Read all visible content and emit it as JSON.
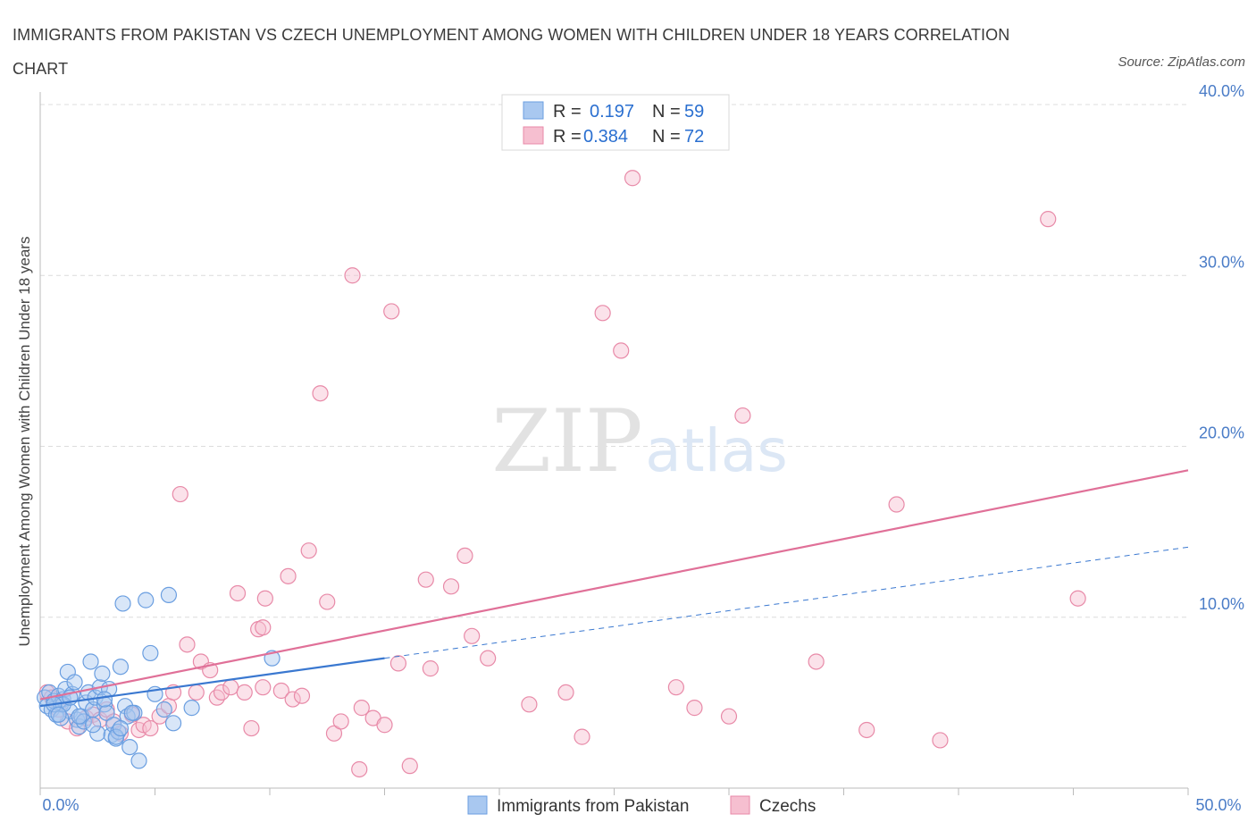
{
  "title": "IMMIGRANTS FROM PAKISTAN VS CZECH UNEMPLOYMENT AMONG WOMEN WITH CHILDREN UNDER 18 YEARS CORRELATION CHART",
  "source": "Source: ZipAtlas.com",
  "watermark": {
    "zip": "ZIP",
    "atlas": "atlas"
  },
  "colors": {
    "blue_fill": "#a9c8f0",
    "blue_stroke": "#6a9ee0",
    "blue_line": "#3a78d0",
    "pink_fill": "#f6bfd0",
    "pink_stroke": "#e88aa8",
    "pink_line": "#e07098",
    "grid": "#dcdcdc",
    "axis_text": "#4a7cc7"
  },
  "legend": {
    "rows": [
      {
        "r_label": "R =",
        "r_value": "0.197",
        "n_label": "N =",
        "n_value": "59"
      },
      {
        "r_label": "R =",
        "r_value": "0.384",
        "n_label": "N =",
        "n_value": "72"
      }
    ]
  },
  "chart_data": {
    "type": "scatter",
    "xlabel": "",
    "ylabel": "Unemployment Among Women with Children Under 18 years",
    "xlim": [
      0,
      50
    ],
    "ylim": [
      0,
      40
    ],
    "x_tick_labels": [
      "0.0%",
      "50.0%"
    ],
    "y_ticks": [
      10,
      20,
      30,
      40
    ],
    "y_tick_labels": [
      "10.0%",
      "20.0%",
      "30.0%",
      "40.0%"
    ],
    "grid": true,
    "series": [
      {
        "name": "Immigrants from Pakistan",
        "r": 0.197,
        "n": 59,
        "trend": {
          "x0": 0,
          "y0": 4.8,
          "x1": 15,
          "y1": 7.6,
          "dashed_to_x": 50,
          "dashed_to_y": 14.1
        },
        "points": [
          [
            0.2,
            5.3
          ],
          [
            0.3,
            4.8
          ],
          [
            0.4,
            5.6
          ],
          [
            0.5,
            4.6
          ],
          [
            0.6,
            5.1
          ],
          [
            0.7,
            4.3
          ],
          [
            0.8,
            5.4
          ],
          [
            0.9,
            4.9
          ],
          [
            1.0,
            5.2
          ],
          [
            1.1,
            5.8
          ],
          [
            1.2,
            6.8
          ],
          [
            1.3,
            4.5
          ],
          [
            1.4,
            5.5
          ],
          [
            1.5,
            6.2
          ],
          [
            1.6,
            4.0
          ],
          [
            1.7,
            3.6
          ],
          [
            1.8,
            4.2
          ],
          [
            1.9,
            3.9
          ],
          [
            2.0,
            5.0
          ],
          [
            2.1,
            5.6
          ],
          [
            2.2,
            7.4
          ],
          [
            2.3,
            4.6
          ],
          [
            2.4,
            5.3
          ],
          [
            2.5,
            3.2
          ],
          [
            2.6,
            5.9
          ],
          [
            2.7,
            6.7
          ],
          [
            2.8,
            4.9
          ],
          [
            2.9,
            4.4
          ],
          [
            3.0,
            5.8
          ],
          [
            3.1,
            3.1
          ],
          [
            3.2,
            3.7
          ],
          [
            3.3,
            2.9
          ],
          [
            3.4,
            3.3
          ],
          [
            3.5,
            7.1
          ],
          [
            3.6,
            10.8
          ],
          [
            3.7,
            4.8
          ],
          [
            3.8,
            4.2
          ],
          [
            3.9,
            2.4
          ],
          [
            4.1,
            4.4
          ],
          [
            4.3,
            1.6
          ],
          [
            4.6,
            11.0
          ],
          [
            4.8,
            7.9
          ],
          [
            5.0,
            5.5
          ],
          [
            5.4,
            4.6
          ],
          [
            5.6,
            11.3
          ],
          [
            5.8,
            3.8
          ],
          [
            6.6,
            4.7
          ],
          [
            10.1,
            7.6
          ],
          [
            0.9,
            4.1
          ],
          [
            1.7,
            4.2
          ],
          [
            2.3,
            3.7
          ],
          [
            3.3,
            3.0
          ],
          [
            3.5,
            3.5
          ],
          [
            4.0,
            4.4
          ],
          [
            1.0,
            4.9
          ],
          [
            0.6,
            4.9
          ],
          [
            1.3,
            5.3
          ],
          [
            2.8,
            5.2
          ],
          [
            0.8,
            4.3
          ]
        ]
      },
      {
        "name": "Czechs",
        "r": 0.384,
        "n": 72,
        "trend": {
          "x0": 0,
          "y0": 5.2,
          "x1": 50,
          "y1": 18.6
        },
        "points": [
          [
            0.3,
            5.6
          ],
          [
            0.5,
            5.3
          ],
          [
            0.8,
            4.6
          ],
          [
            1.2,
            3.9
          ],
          [
            1.6,
            3.5
          ],
          [
            2.0,
            4.1
          ],
          [
            2.3,
            4.3
          ],
          [
            2.6,
            4.0
          ],
          [
            2.9,
            4.6
          ],
          [
            3.2,
            3.9
          ],
          [
            3.5,
            3.2
          ],
          [
            4.0,
            4.3
          ],
          [
            4.3,
            3.4
          ],
          [
            4.5,
            3.7
          ],
          [
            4.8,
            3.5
          ],
          [
            5.2,
            4.2
          ],
          [
            5.6,
            4.8
          ],
          [
            5.8,
            5.6
          ],
          [
            6.1,
            17.2
          ],
          [
            6.4,
            8.4
          ],
          [
            6.8,
            5.6
          ],
          [
            7.0,
            7.4
          ],
          [
            7.4,
            6.9
          ],
          [
            7.7,
            5.3
          ],
          [
            7.9,
            5.6
          ],
          [
            8.3,
            5.9
          ],
          [
            8.6,
            11.4
          ],
          [
            8.9,
            5.6
          ],
          [
            9.2,
            3.5
          ],
          [
            9.5,
            9.3
          ],
          [
            9.8,
            11.1
          ],
          [
            9.7,
            9.4
          ],
          [
            10.5,
            5.7
          ],
          [
            10.8,
            12.4
          ],
          [
            11.0,
            5.2
          ],
          [
            11.4,
            5.4
          ],
          [
            11.7,
            13.9
          ],
          [
            12.2,
            23.1
          ],
          [
            12.5,
            10.9
          ],
          [
            12.8,
            3.2
          ],
          [
            13.1,
            3.9
          ],
          [
            13.6,
            30.0
          ],
          [
            13.9,
            1.1
          ],
          [
            14.0,
            4.7
          ],
          [
            14.5,
            4.1
          ],
          [
            15.0,
            3.7
          ],
          [
            15.3,
            27.9
          ],
          [
            15.6,
            7.3
          ],
          [
            16.1,
            1.3
          ],
          [
            16.8,
            12.2
          ],
          [
            17.0,
            7.0
          ],
          [
            17.9,
            11.8
          ],
          [
            18.5,
            13.6
          ],
          [
            18.8,
            8.9
          ],
          [
            19.5,
            7.6
          ],
          [
            21.3,
            4.9
          ],
          [
            22.9,
            5.6
          ],
          [
            23.6,
            3.0
          ],
          [
            24.5,
            27.8
          ],
          [
            25.3,
            25.6
          ],
          [
            25.8,
            35.7
          ],
          [
            27.7,
            5.9
          ],
          [
            28.5,
            4.7
          ],
          [
            30.0,
            4.2
          ],
          [
            30.6,
            21.8
          ],
          [
            33.8,
            7.4
          ],
          [
            36.0,
            3.4
          ],
          [
            37.3,
            16.6
          ],
          [
            39.2,
            2.8
          ],
          [
            43.9,
            33.3
          ],
          [
            45.2,
            11.1
          ],
          [
            9.7,
            5.9
          ]
        ]
      }
    ]
  },
  "bottom_legend": [
    "Immigrants from Pakistan",
    "Czechs"
  ]
}
